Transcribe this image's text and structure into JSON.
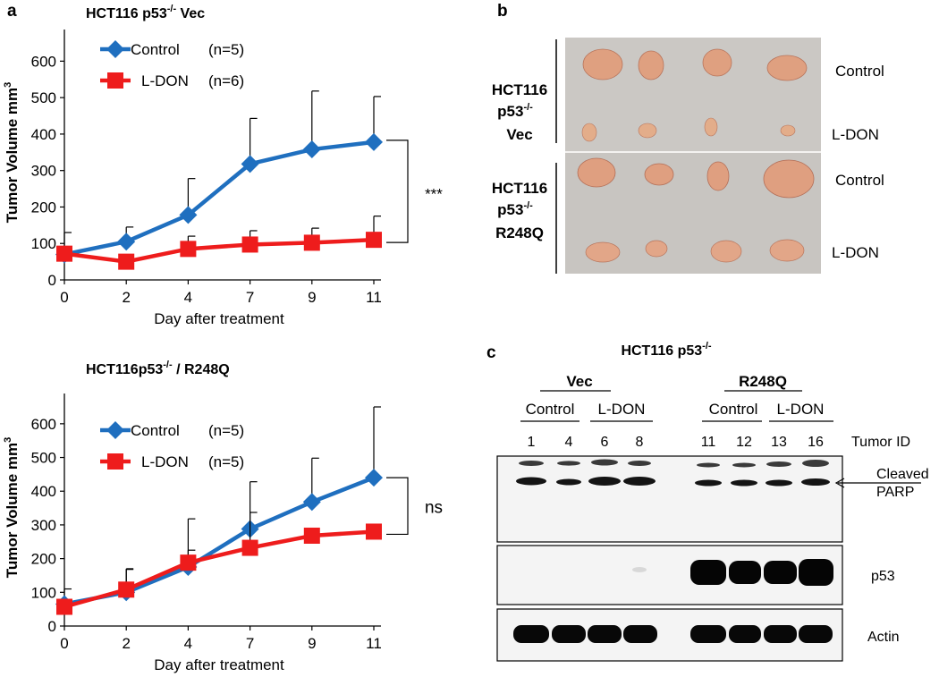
{
  "panels": {
    "a_label": "a",
    "b_label": "b",
    "c_label": "c"
  },
  "chart_data": [
    {
      "type": "line",
      "title": "HCT116 p53",
      "title_sup": "-/-",
      "title_suffix": " Vec",
      "xlabel": "Day after treatment",
      "ylabel": "Tumor Volume mm",
      "ylabel_sup": "3",
      "categories": [
        "0",
        "2",
        "4",
        "7",
        "9",
        "11"
      ],
      "ylim": [
        0,
        650
      ],
      "yticks": [
        "0",
        "100",
        "200",
        "300",
        "400",
        "500",
        "600"
      ],
      "legend_position": "top-left",
      "series": [
        {
          "name": "Control",
          "n_label": "(n=5)",
          "color": "#1f6fbf",
          "marker": "diamond",
          "values": [
            70,
            105,
            178,
            318,
            358,
            378
          ],
          "err": [
            60,
            40,
            100,
            125,
            160,
            125
          ]
        },
        {
          "name": "L-DON",
          "n_label": "(n=6)",
          "color": "#ee1c1c",
          "marker": "square",
          "values": [
            72,
            50,
            85,
            97,
            102,
            110
          ],
          "err": [
            0,
            0,
            35,
            38,
            40,
            65
          ]
        }
      ],
      "significance": "***"
    },
    {
      "type": "line",
      "title": "HCT116p53",
      "title_sup": "-/-",
      "title_suffix": " / R248Q",
      "xlabel": "Day after treatment",
      "ylabel": "Tumor Volume mm",
      "ylabel_sup": "3",
      "categories": [
        "0",
        "2",
        "4",
        "7",
        "9",
        "11"
      ],
      "ylim": [
        0,
        650
      ],
      "yticks": [
        "0",
        "100",
        "200",
        "300",
        "400",
        "500",
        "600"
      ],
      "legend_position": "top-left",
      "series": [
        {
          "name": "Control",
          "n_label": "(n=5)",
          "color": "#1f6fbf",
          "marker": "diamond",
          "values": [
            65,
            100,
            175,
            288,
            368,
            440
          ],
          "err": [
            45,
            70,
            50,
            140,
            130,
            210
          ]
        },
        {
          "name": "L-DON",
          "n_label": "(n=5)",
          "color": "#ee1c1c",
          "marker": "square",
          "values": [
            57,
            108,
            188,
            232,
            268,
            280
          ],
          "err": [
            0,
            60,
            130,
            105,
            0,
            0
          ]
        }
      ],
      "significance": "ns"
    }
  ],
  "photo": {
    "row_labels": [
      {
        "line1": "HCT116",
        "line2": "p53",
        "line2_sup": "-/-",
        "line3": "Vec"
      },
      {
        "line1": "HCT116",
        "line2": "p53",
        "line2_sup": "-/-",
        "line3": "R248Q"
      }
    ],
    "treatment_labels": [
      "Control",
      "L-DON",
      "Control",
      "L-DON"
    ],
    "background": "#c9c6c2",
    "tumor_color": "#e2a585"
  },
  "blot": {
    "title": "HCT116 p53",
    "title_sup": "-/-",
    "group_vec": "Vec",
    "group_r248q": "R248Q",
    "sub_groups": [
      "Control",
      "L-DON",
      "Control",
      "L-DON"
    ],
    "tumor_ids": [
      "1",
      "4",
      "6",
      "8",
      "11",
      "12",
      "13",
      "16"
    ],
    "tumor_id_label": "Tumor ID",
    "band_labels": {
      "parp_line1": "Cleaved",
      "parp_line2": "PARP",
      "p53": "p53",
      "actin": "Actin"
    }
  }
}
